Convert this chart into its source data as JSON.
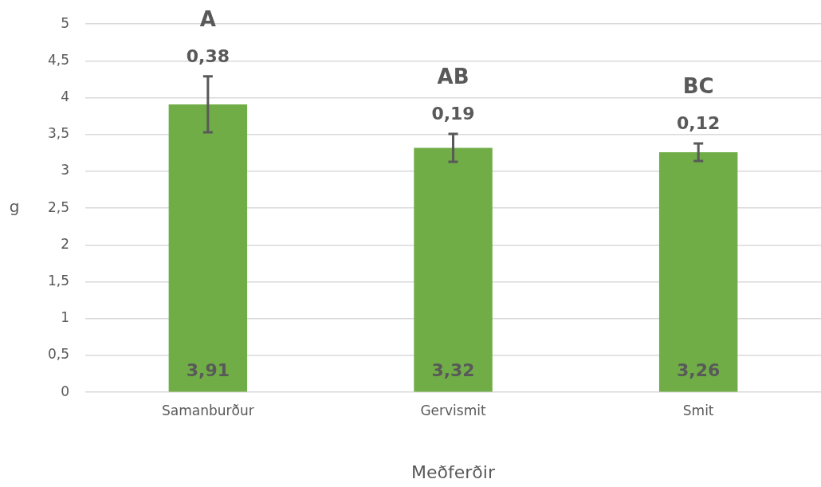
{
  "chart_data": {
    "type": "bar",
    "xlabel": "Meðferðir",
    "ylabel": "g",
    "categories": [
      "Samanburður",
      "Gervismit",
      "Smit"
    ],
    "values": [
      3.91,
      3.32,
      3.26
    ],
    "color": "#70ad47",
    "errors": [
      0.38,
      0.19,
      0.12
    ],
    "value_labels": [
      "3,91",
      "3,32",
      "3,26"
    ],
    "annotations": [
      "A",
      "0,38",
      "AB",
      "0,19",
      "BC",
      "0,12"
    ],
    "ylim": [
      0,
      5
    ],
    "yticks": [
      {
        "value": 0,
        "label": "0"
      },
      {
        "value": 0.5,
        "label": "0,5"
      },
      {
        "value": 1,
        "label": "1"
      },
      {
        "value": 1.5,
        "label": "1,5"
      },
      {
        "value": 2,
        "label": "2"
      },
      {
        "value": 2.5,
        "label": "2,5"
      },
      {
        "value": 3,
        "label": "3"
      },
      {
        "value": 3.5,
        "label": "3,5"
      },
      {
        "value": 4,
        "label": "4"
      },
      {
        "value": 4.5,
        "label": "4,5"
      },
      {
        "value": 5,
        "label": "5"
      }
    ],
    "grid": "y",
    "legend": false
  }
}
